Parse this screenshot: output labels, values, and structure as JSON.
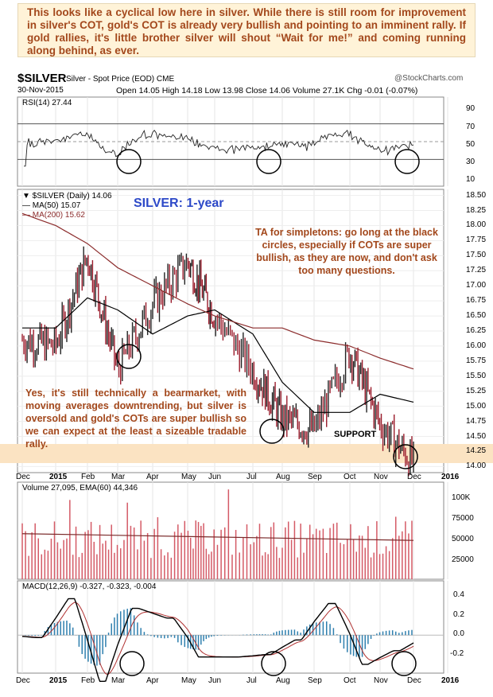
{
  "annotation_top": "This looks like a cyclical low here in silver. While there is still room for improvement in silver's COT, gold's COT is already very bullish and pointing to an imminent rally. If gold rallies, it's little brother silver will shout “Wait for me!” and coming running along behind, as ever.",
  "header": {
    "symbol": "$SILVER",
    "description": "Silver - Spot Price (EOD) CME",
    "date": "30-Nov-2015",
    "ohlc": "Open 14.05   High 14.18   Low 13.98   Close 14.06   Volume 27.1K   Chg -0.01 (-0.07%)",
    "logo": "@StockCharts.com"
  },
  "colors": {
    "price_up": "#222222",
    "price_down": "#9b1c2c",
    "ma50": "#000000",
    "ma200": "#8b2b2b",
    "support_band": "#fbe3c2",
    "annotation_text": "#a3481c",
    "title_blue": "#2d49c8",
    "volume_bar": "#d45a66",
    "macd_hist": "#2e7fae"
  },
  "rsi_panel": {
    "label": "RSI(14) 27.44",
    "ticks": [
      "90",
      "70",
      "50",
      "30",
      "10"
    ]
  },
  "price_panel": {
    "legend_symbol": "▼ $SILVER (Daily) 14.06",
    "legend_ma50": "— MA(50) 15.07",
    "legend_ma200": "— MA(200) 15.62",
    "title": "SILVER: 1-year",
    "note_right": "TA for simpletons: go long at the black circles, especially if COTs are super bullish, as they are now, and don't ask too many questions.",
    "note_left": "Yes, it's still technically a bearmarket, with moving averages downtrending, but silver is oversold and gold's COTs are super bullish so we can expect at the least a sizeable tradable rally.",
    "support_label": "SUPPORT",
    "ticks": [
      "18.50",
      "18.25",
      "18.00",
      "17.75",
      "17.50",
      "17.25",
      "17.00",
      "16.75",
      "16.50",
      "16.25",
      "16.00",
      "15.75",
      "15.50",
      "15.25",
      "15.00",
      "14.75",
      "14.50",
      "14.25",
      "14.00"
    ]
  },
  "volume_panel": {
    "label": "Volume 27,095, EMA(60) 44,346",
    "ticks": [
      "100K",
      "75000",
      "50000",
      "25000"
    ]
  },
  "macd_panel": {
    "label": "MACD(12,26,9) -0.327, -0.323, -0.004",
    "ticks": [
      "0.4",
      "0.2",
      "0.0",
      "-0.2"
    ]
  },
  "x_axis": [
    "Dec",
    "2015",
    "Feb",
    "Mar",
    "Apr",
    "May",
    "Jun",
    "Jul",
    "Aug",
    "Sep",
    "Oct",
    "Nov",
    "Dec",
    "2016"
  ],
  "chart_data": {
    "type": "line",
    "title": "SILVER: 1-year",
    "ylim": [
      13.9,
      18.6
    ],
    "x": [
      "Dec 2014",
      "Jan 2015",
      "Feb 2015",
      "Mar 2015",
      "Apr 2015",
      "May 2015",
      "Jun 2015",
      "Jul 2015",
      "Aug 2015",
      "Sep 2015",
      "Oct 2015",
      "Nov 2015",
      "Nov 30 2015"
    ],
    "series": [
      {
        "name": "$SILVER (Daily)",
        "values": [
          16.1,
          16.0,
          17.5,
          15.6,
          16.7,
          17.4,
          16.5,
          15.6,
          14.8,
          14.6,
          15.9,
          14.7,
          14.06
        ]
      },
      {
        "name": "MA(50)",
        "values": [
          16.3,
          16.3,
          16.8,
          16.6,
          16.2,
          16.5,
          16.6,
          16.2,
          15.4,
          14.9,
          14.9,
          15.2,
          15.07
        ]
      },
      {
        "name": "MA(200)",
        "values": [
          18.2,
          18.0,
          17.7,
          17.3,
          17.0,
          16.7,
          16.5,
          16.3,
          16.3,
          16.1,
          16.0,
          15.8,
          15.62
        ]
      }
    ]
  }
}
